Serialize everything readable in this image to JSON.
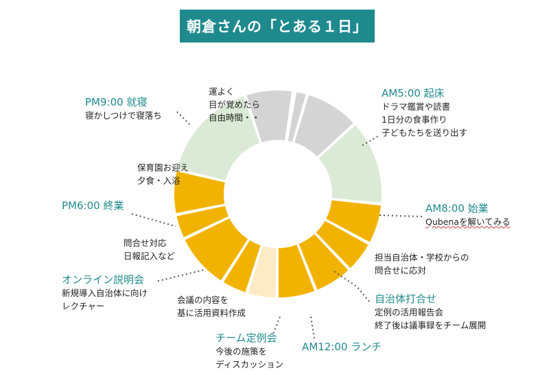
{
  "title": "朝倉さんの「とある１日」",
  "segments": [
    {
      "start": 10,
      "end": 16,
      "color": "#d4d4d4"
    },
    {
      "start": 17,
      "end": 47,
      "color": "#d4d4d4"
    },
    {
      "start": 48,
      "end": 95,
      "color": "#dbead6"
    },
    {
      "start": 96,
      "end": 118,
      "color": "#f2b300"
    },
    {
      "start": 119,
      "end": 136,
      "color": "#f2b300"
    },
    {
      "start": 137,
      "end": 158,
      "color": "#f2b300"
    },
    {
      "start": 159,
      "end": 180,
      "color": "#f2b300"
    },
    {
      "start": 181,
      "end": 197,
      "color": "#fcebc4"
    },
    {
      "start": 198,
      "end": 212,
      "color": "#f2b300"
    },
    {
      "start": 213,
      "end": 244,
      "color": "#f2b300"
    },
    {
      "start": 245,
      "end": 258,
      "color": "#f2b300"
    },
    {
      "start": 259,
      "end": 283,
      "color": "#f2b300"
    },
    {
      "start": 284,
      "end": 341,
      "color": "#dbead6"
    },
    {
      "start": 342,
      "end": 368,
      "color": "#d4d4d4"
    }
  ],
  "events": {
    "am5": {
      "time": "AM5:00 起床",
      "lines": [
        "ドラマ鑑賞や読書",
        "1日分の食事作り",
        "子どもたちを送り出す"
      ]
    },
    "am8": {
      "time": "AM8:00 始業",
      "lines": [
        "Qubenaを解いてみる"
      ]
    },
    "task": {
      "lines": [
        "担当自治体・学校からの",
        "問合せに応対"
      ]
    },
    "jichi": {
      "time": "自治体打合せ",
      "lines": [
        "定例の活用報告会",
        "終了後は議事録をチーム展開"
      ]
    },
    "am12": {
      "time": "AM12:00 ランチ"
    },
    "team": {
      "time": "チーム定例会",
      "lines": [
        "今後の施策を",
        "ディスカッション"
      ]
    },
    "mtg": {
      "lines": [
        "会議の内容を",
        "基に活用資料作成"
      ]
    },
    "online": {
      "time": "オンライン説明会",
      "lines": [
        "新規導入自治体に向け",
        "レクチャー"
      ]
    },
    "inq": {
      "lines": [
        "問合せ対応",
        "日報記入など"
      ]
    },
    "pm6": {
      "time": "PM6:00 終業"
    },
    "nursery": {
      "lines": [
        "保育園お迎え",
        "夕食・入浴"
      ]
    },
    "pm9": {
      "time": "PM9:00 就寝",
      "lines": [
        "寝かしつけで寝落ち"
      ]
    },
    "luck": {
      "lines": [
        "運よく",
        "目が覚めたら",
        "自由時間・・"
      ]
    }
  }
}
